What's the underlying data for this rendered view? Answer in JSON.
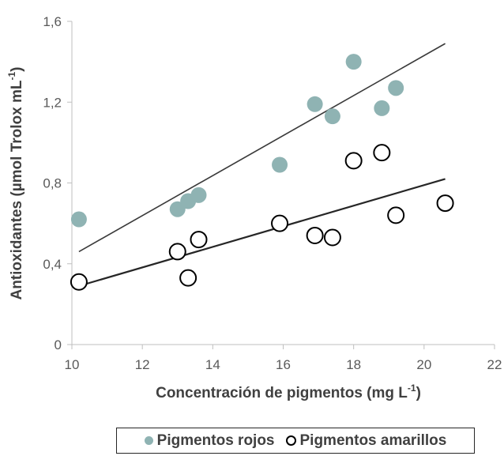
{
  "chart_data": {
    "type": "scatter",
    "xlabel": "Concentración de pigmentos (mg L",
    "xlabel_sup": "-1",
    "xlabel_close": ")",
    "ylabel": "Antioxidantes (µmol Trolox mL",
    "ylabel_sup": "-1",
    "ylabel_close": ")",
    "xlim": [
      10,
      22
    ],
    "ylim": [
      0,
      1.6
    ],
    "x_ticks": [
      10,
      12,
      14,
      16,
      18,
      20,
      22
    ],
    "y_ticks": [
      0,
      0.4,
      0.8,
      1.2,
      1.6
    ],
    "x_tick_labels": [
      "10",
      "12",
      "14",
      "16",
      "18",
      "20",
      "22"
    ],
    "y_tick_labels": [
      "0",
      "0,4",
      "0,8",
      "1,2",
      "1,6"
    ],
    "grid": false,
    "legend_position": "bottom",
    "series": [
      {
        "name": "Pigmentos rojos",
        "marker": "filled",
        "color": "#8fb3b3",
        "points": [
          [
            10.2,
            0.62
          ],
          [
            13.0,
            0.67
          ],
          [
            13.3,
            0.71
          ],
          [
            13.6,
            0.74
          ],
          [
            15.9,
            0.89
          ],
          [
            16.9,
            1.19
          ],
          [
            17.4,
            1.13
          ],
          [
            18.0,
            1.4
          ],
          [
            18.8,
            1.17
          ],
          [
            19.2,
            1.27
          ]
        ],
        "trendline": [
          [
            10.2,
            0.46
          ],
          [
            20.6,
            1.49
          ]
        ]
      },
      {
        "name": "Pigmentos amarillos",
        "marker": "hollow",
        "color": "#000000",
        "points": [
          [
            10.2,
            0.31
          ],
          [
            13.0,
            0.46
          ],
          [
            13.3,
            0.33
          ],
          [
            13.6,
            0.52
          ],
          [
            15.9,
            0.6
          ],
          [
            16.9,
            0.54
          ],
          [
            17.4,
            0.53
          ],
          [
            18.0,
            0.91
          ],
          [
            18.8,
            0.95
          ],
          [
            19.2,
            0.64
          ],
          [
            20.6,
            0.7
          ]
        ],
        "trendline": [
          [
            10.2,
            0.29
          ],
          [
            20.6,
            0.82
          ]
        ]
      }
    ]
  }
}
